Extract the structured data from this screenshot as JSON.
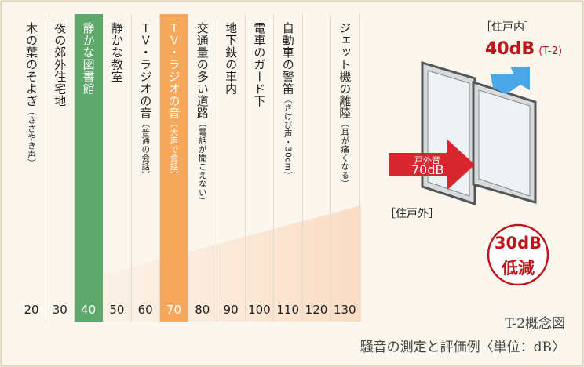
{
  "columns": [
    {
      "label": "木の葉のそよぎ",
      "sub": "（ささやき声）",
      "value": "20"
    },
    {
      "label": "夜の郊外住宅地",
      "value": "30"
    },
    {
      "label": "静かな図書館",
      "value": "40",
      "highlight": "#5fa86b"
    },
    {
      "label": "静かな教室",
      "value": "50"
    },
    {
      "label": "ＴＶ・ラジオの音",
      "sub": "（普通の会話）",
      "value": "60"
    },
    {
      "label": "ＴＶ・ラジオの音",
      "sub": "（大声で会話）",
      "value": "70",
      "highlight": "#f7a85a"
    },
    {
      "label": "交通量の多い道路",
      "sub": "（電話が聞こえない）",
      "value": "80"
    },
    {
      "label": "地下鉄の車内",
      "value": "90"
    },
    {
      "label": "電車のガード下",
      "value": "100"
    },
    {
      "label": "自動車の警笛",
      "sub": "（さけび声・30cm）",
      "value": "110"
    },
    {
      "value": "120"
    },
    {
      "label": "ジェット機の離陸",
      "sub": "（耳が痛くなる）",
      "value": "130"
    }
  ],
  "diagram": {
    "inside": "［住戸内］",
    "inside_level": "40dB",
    "inside_grade": "(T-2)",
    "outside": "［住戸外］",
    "outside_label": "戸外音",
    "outside_level": "70dB",
    "reduction": "30dB",
    "reduction_word": "低減"
  },
  "caption": {
    "title": "T-2概念図",
    "subtitle": "騒音の測定と評価例〈単位：dB〉"
  }
}
